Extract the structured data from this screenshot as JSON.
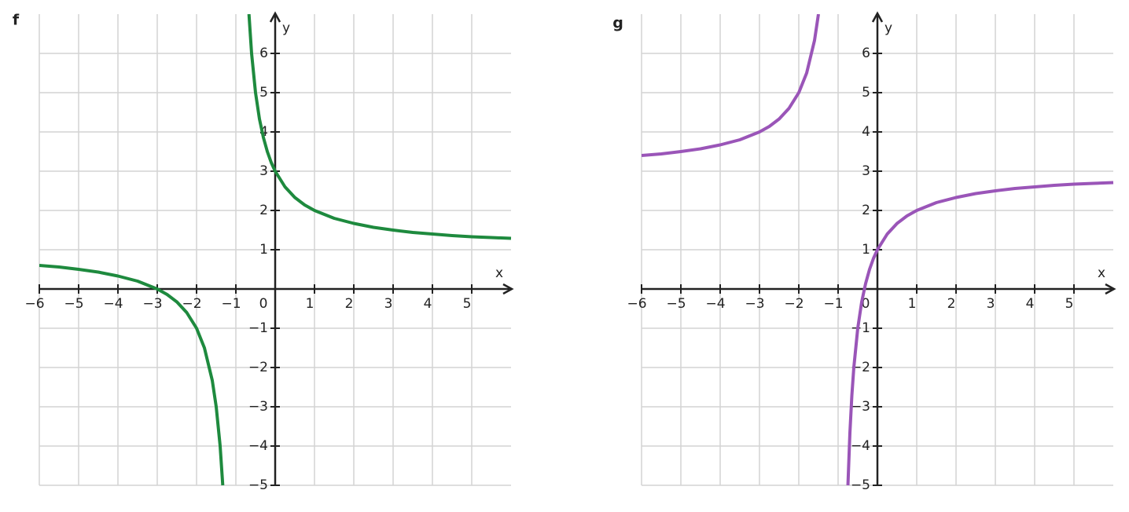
{
  "chart_data": [
    {
      "type": "line",
      "title": "f",
      "x_label": "x",
      "y_label": "y",
      "xlim": [
        -6,
        6
      ],
      "ylim": [
        -5,
        7
      ],
      "grid": true,
      "xticks": [
        {
          "value": -6,
          "label": "−6"
        },
        {
          "value": -5,
          "label": "−5"
        },
        {
          "value": -4,
          "label": "−4"
        },
        {
          "value": -3,
          "label": "−3"
        },
        {
          "value": -2,
          "label": "−2"
        },
        {
          "value": -1,
          "label": "−1"
        },
        0,
        1,
        2,
        3,
        4,
        5
      ],
      "yticks": [
        {
          "value": -5,
          "label": "−5"
        },
        {
          "value": -4,
          "label": "−4"
        },
        {
          "value": -3,
          "label": "−3"
        },
        {
          "value": -2,
          "label": "−2"
        },
        {
          "value": -1,
          "label": "−1"
        },
        1,
        2,
        3,
        4,
        5,
        6
      ],
      "x": [
        -6,
        -5.5,
        -5,
        -4.5,
        -4,
        -3.5,
        -3,
        -2.75,
        -2.5,
        -2.25,
        -2,
        -1.8,
        -1.6,
        -1.5,
        -1.4,
        -1.3333,
        -1,
        -0.6667,
        -0.6,
        -0.5,
        -0.4,
        -0.3,
        -0.2,
        -0.1,
        0,
        0.25,
        0.5,
        0.75,
        1,
        1.5,
        2,
        2.5,
        3,
        3.5,
        4,
        4.5,
        5,
        5.5,
        6
      ],
      "series": [
        {
          "color": "#1e8a3e",
          "values": [
            0.6,
            0.56,
            0.5,
            0.43,
            0.33,
            0.2,
            0,
            -0.14,
            -0.33,
            -0.6,
            -1,
            -1.5,
            -2.33,
            -3,
            -4,
            -5,
            null,
            7,
            6,
            5,
            4.33,
            3.86,
            3.5,
            3.22,
            3,
            2.6,
            2.33,
            2.14,
            2,
            1.8,
            1.67,
            1.57,
            1.5,
            1.44,
            1.4,
            1.36,
            1.33,
            1.31,
            1.29
          ]
        }
      ]
    },
    {
      "type": "line",
      "title": "g",
      "x_label": "x",
      "y_label": "y",
      "xlim": [
        -6,
        6
      ],
      "ylim": [
        -5,
        7
      ],
      "grid": true,
      "xticks": [
        {
          "value": -6,
          "label": "−6"
        },
        {
          "value": -5,
          "label": "−5"
        },
        {
          "value": -4,
          "label": "−4"
        },
        {
          "value": -3,
          "label": "−3"
        },
        {
          "value": -2,
          "label": "−2"
        },
        {
          "value": -1,
          "label": "−1"
        },
        0,
        1,
        2,
        3,
        4,
        5
      ],
      "yticks": [
        {
          "value": -5,
          "label": "−5"
        },
        {
          "value": -4,
          "label": "−4"
        },
        {
          "value": -3,
          "label": "−3"
        },
        {
          "value": -2,
          "label": "−2"
        },
        {
          "value": -1,
          "label": "−1"
        },
        1,
        2,
        3,
        4,
        5,
        6
      ],
      "x": [
        -6,
        -5.5,
        -5,
        -4.5,
        -4,
        -3.5,
        -3,
        -2.75,
        -2.5,
        -2.25,
        -2,
        -1.8,
        -1.6,
        -1.5,
        -1,
        -0.75,
        -0.7,
        -0.65,
        -0.6,
        -0.5,
        -0.4,
        -0.3,
        -0.2,
        -0.1,
        0,
        0.25,
        0.5,
        0.75,
        1,
        1.5,
        2,
        2.5,
        3,
        3.5,
        4,
        4.5,
        5,
        5.5,
        6
      ],
      "series": [
        {
          "color": "#9a55b8",
          "values": [
            3.4,
            3.44,
            3.5,
            3.57,
            3.67,
            3.8,
            4,
            4.14,
            4.33,
            4.6,
            5,
            5.5,
            6.33,
            7,
            null,
            -5,
            -3.67,
            -2.71,
            -2,
            -1,
            -0.33,
            0.14,
            0.5,
            0.78,
            1,
            1.4,
            1.67,
            1.86,
            2,
            2.2,
            2.33,
            2.43,
            2.5,
            2.56,
            2.6,
            2.64,
            2.67,
            2.69,
            2.71
          ]
        }
      ]
    }
  ]
}
